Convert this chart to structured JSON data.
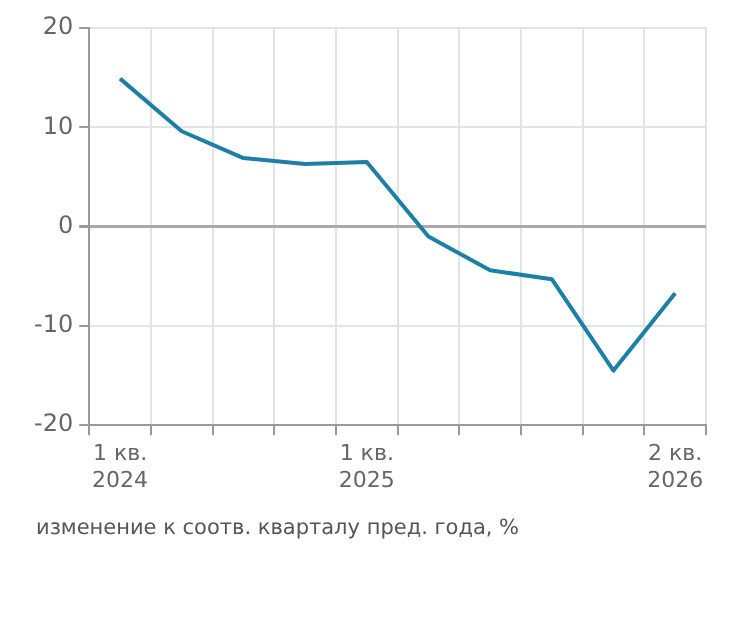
{
  "chart_data": {
    "type": "line",
    "categories": [
      "1 кв.\n2024",
      null,
      null,
      null,
      "1 кв.\n2025",
      null,
      null,
      null,
      null,
      "2 кв.\n2026"
    ],
    "series": [
      {
        "color": "#1b7fa6",
        "values": [
          14.9,
          9.6,
          6.9,
          6.3,
          6.5,
          -1.0,
          -4.4,
          -5.3,
          -14.5,
          -6.7
        ]
      }
    ],
    "ylim": [
      -20,
      20
    ],
    "yticks": [
      -20,
      -10,
      0,
      10,
      20
    ],
    "grid": true,
    "legend": false,
    "marker": "none",
    "line_style": "solid",
    "annotations": [
      "изменение к соотв. кварталу пред. года, %"
    ]
  }
}
